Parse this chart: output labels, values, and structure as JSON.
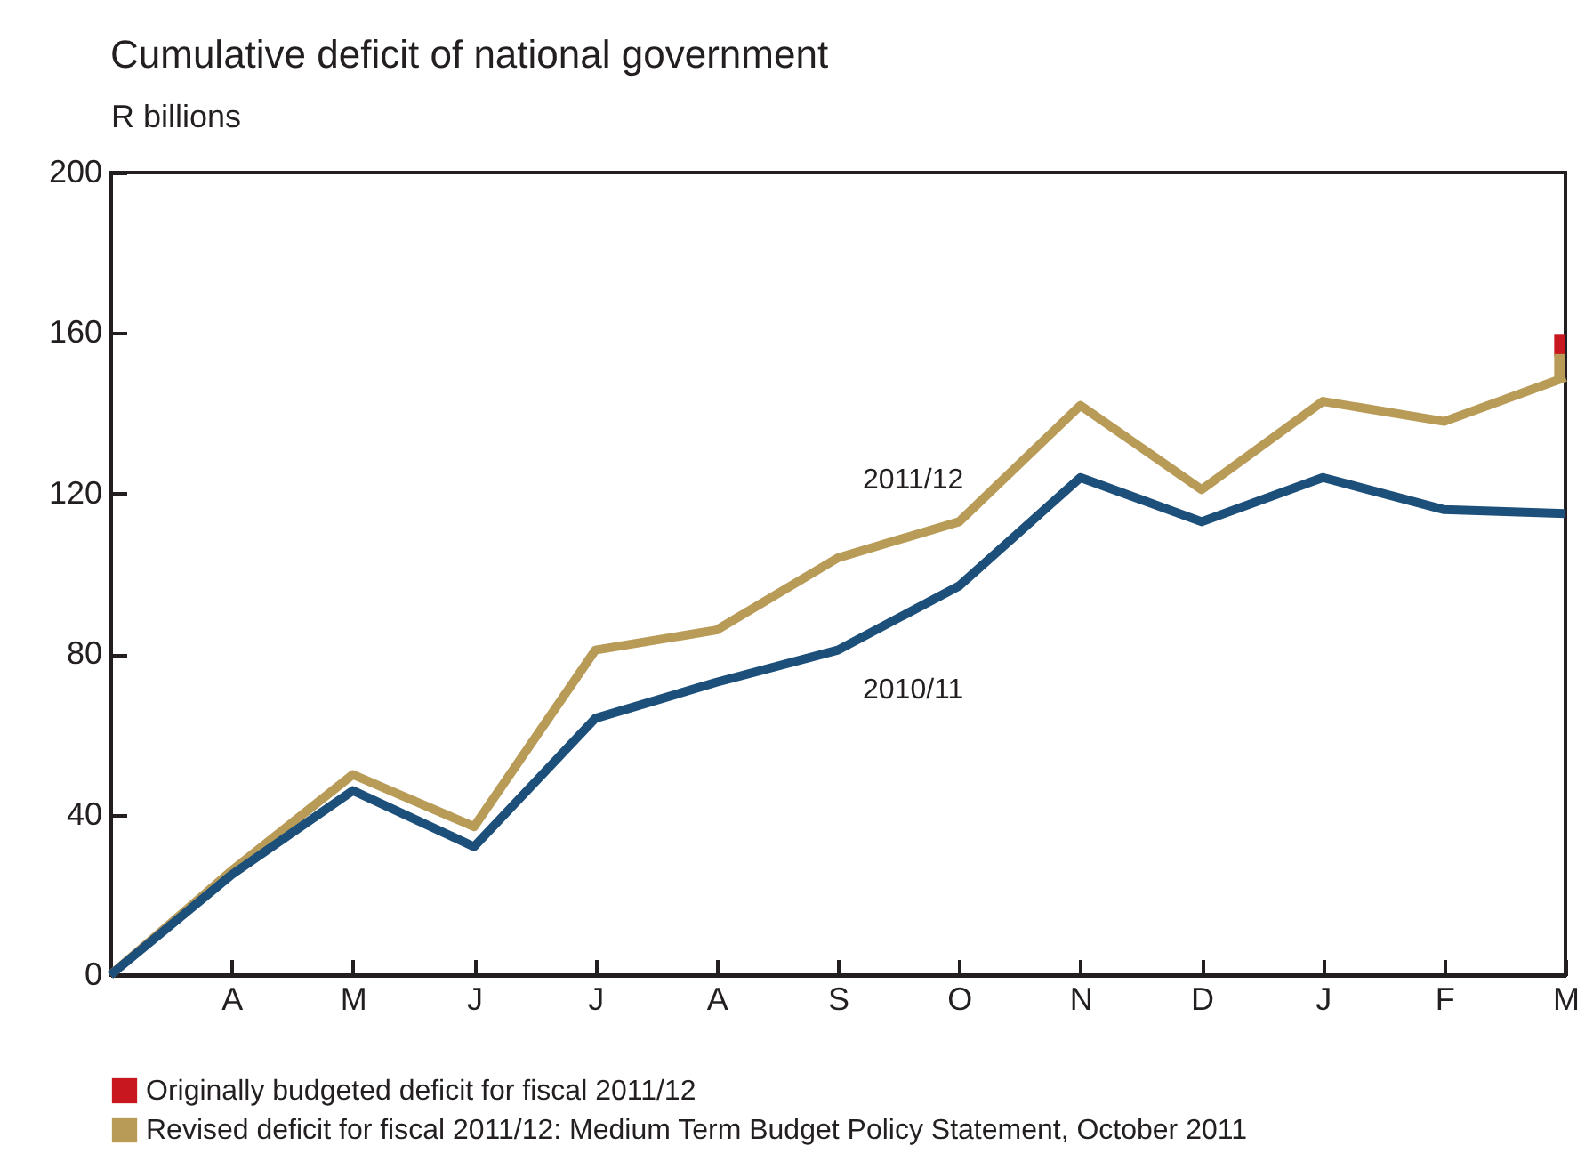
{
  "chart_data": {
    "type": "line",
    "title": "Cumulative deficit of national government",
    "ylabel": "R billions",
    "ylim": [
      0,
      200
    ],
    "yticks": [
      0,
      40,
      80,
      120,
      160,
      200
    ],
    "categories": [
      null,
      "A",
      "M",
      "J",
      "J",
      "A",
      "S",
      "O",
      "N",
      "D",
      "J",
      "F",
      "M"
    ],
    "series": [
      {
        "name": "2011/12",
        "color": "#b99b58",
        "values": [
          0,
          26,
          50,
          37,
          81,
          86,
          104,
          113,
          142,
          121,
          143,
          138,
          149
        ]
      },
      {
        "name": "2010/11",
        "color": "#1c4f7a",
        "values": [
          0,
          25,
          46,
          32,
          64,
          73,
          81,
          97,
          124,
          113,
          124,
          116,
          115
        ]
      },
      {
        "name": "Originally budgeted deficit for fiscal 2011/12",
        "type": "scatter",
        "marker": "square",
        "color": "#c8171f",
        "values": [
          null,
          null,
          null,
          null,
          null,
          null,
          null,
          null,
          null,
          null,
          null,
          null,
          157
        ]
      },
      {
        "name": "Revised deficit for fiscal 2011/12: Medium Term Budget Policy Statement, October 2011",
        "type": "scatter",
        "marker": "square",
        "color": "#b99b58",
        "values": [
          null,
          null,
          null,
          null,
          null,
          null,
          null,
          null,
          null,
          null,
          null,
          null,
          152
        ]
      }
    ],
    "grid": false,
    "legend": "bottom"
  }
}
